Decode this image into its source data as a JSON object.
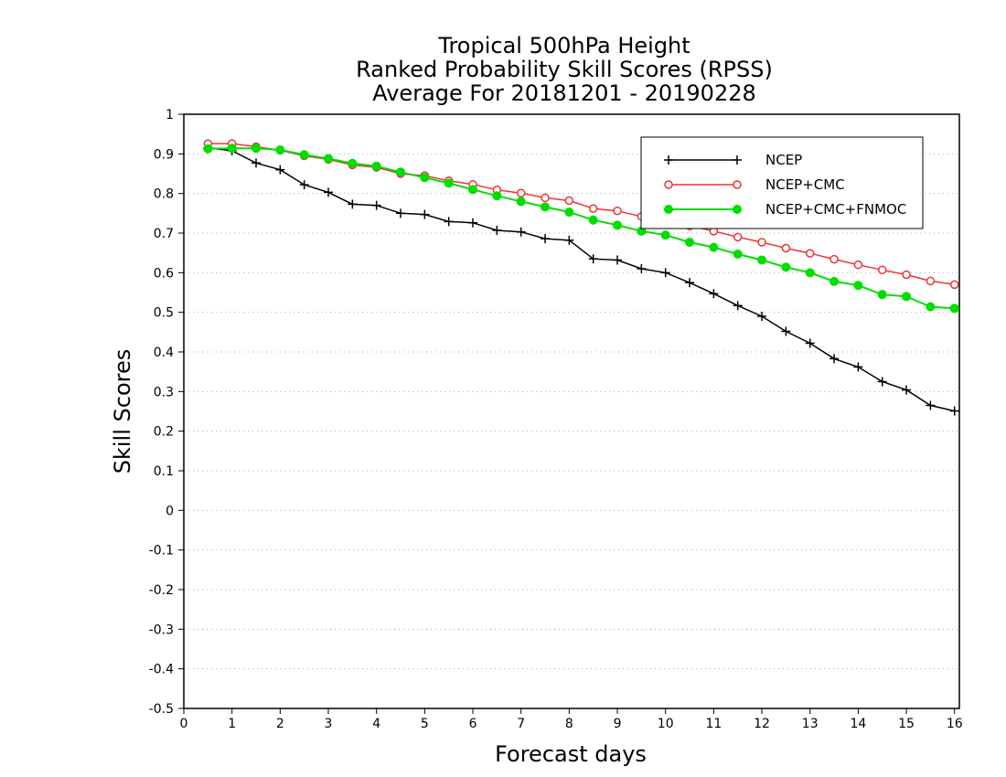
{
  "chart_data": {
    "type": "line",
    "title_lines": [
      "Tropical 500hPa Height",
      "Ranked Probability Skill Scores (RPSS)",
      "Average For 20181201 - 20190228"
    ],
    "xlabel": "Forecast days",
    "ylabel": "Skill Scores",
    "xlim": [
      0,
      16.1
    ],
    "ylim": [
      -0.5,
      1
    ],
    "x_ticks": [
      "0",
      "1",
      "2",
      "3",
      "4",
      "5",
      "6",
      "7",
      "8",
      "9",
      "10",
      "11",
      "12",
      "13",
      "14",
      "15",
      "16"
    ],
    "y_ticks": [
      "-0.5",
      "-0.4",
      "-0.3",
      "-0.2",
      "-0.1",
      "0",
      "0.1",
      "0.2",
      "0.3",
      "0.4",
      "0.5",
      "0.6",
      "0.7",
      "0.8",
      "0.9",
      "1"
    ],
    "grid": "horizontal dotted",
    "legend_position": "top-right",
    "x": [
      0.5,
      1.0,
      1.5,
      2.0,
      2.5,
      3.0,
      3.5,
      4.0,
      4.5,
      5.0,
      5.5,
      6.0,
      6.5,
      7.0,
      7.5,
      8.0,
      8.5,
      9.0,
      9.5,
      10.0,
      10.5,
      11.0,
      11.5,
      12.0,
      12.5,
      13.0,
      13.5,
      14.0,
      14.5,
      15.0,
      15.5,
      16.0
    ],
    "series": [
      {
        "name": "NCEP",
        "color": "#000000",
        "marker": "plus",
        "values": [
          0.915,
          0.908,
          0.877,
          0.86,
          0.822,
          0.803,
          0.773,
          0.77,
          0.75,
          0.747,
          0.729,
          0.726,
          0.707,
          0.703,
          0.686,
          0.682,
          0.635,
          0.632,
          0.61,
          0.6,
          0.575,
          0.547,
          0.517,
          0.49,
          0.452,
          0.422,
          0.383,
          0.362,
          0.325,
          0.304,
          0.265,
          0.251
        ]
      },
      {
        "name": "NCEP+CMC",
        "color": "#ee3333",
        "marker": "open-circle",
        "values": [
          0.926,
          0.926,
          0.918,
          0.909,
          0.895,
          0.886,
          0.872,
          0.866,
          0.85,
          0.845,
          0.832,
          0.823,
          0.809,
          0.801,
          0.789,
          0.782,
          0.762,
          0.756,
          0.742,
          0.733,
          0.718,
          0.705,
          0.69,
          0.677,
          0.662,
          0.649,
          0.634,
          0.62,
          0.607,
          0.595,
          0.579,
          0.57
        ]
      },
      {
        "name": "NCEP+CMC+FNMOC",
        "color": "#00dd00",
        "marker": "filled-circle",
        "values": [
          0.913,
          0.914,
          0.914,
          0.91,
          0.898,
          0.888,
          0.876,
          0.869,
          0.854,
          0.84,
          0.826,
          0.81,
          0.794,
          0.78,
          0.766,
          0.753,
          0.733,
          0.72,
          0.705,
          0.695,
          0.677,
          0.664,
          0.647,
          0.632,
          0.614,
          0.6,
          0.578,
          0.568,
          0.545,
          0.54,
          0.514,
          0.51
        ]
      }
    ]
  }
}
